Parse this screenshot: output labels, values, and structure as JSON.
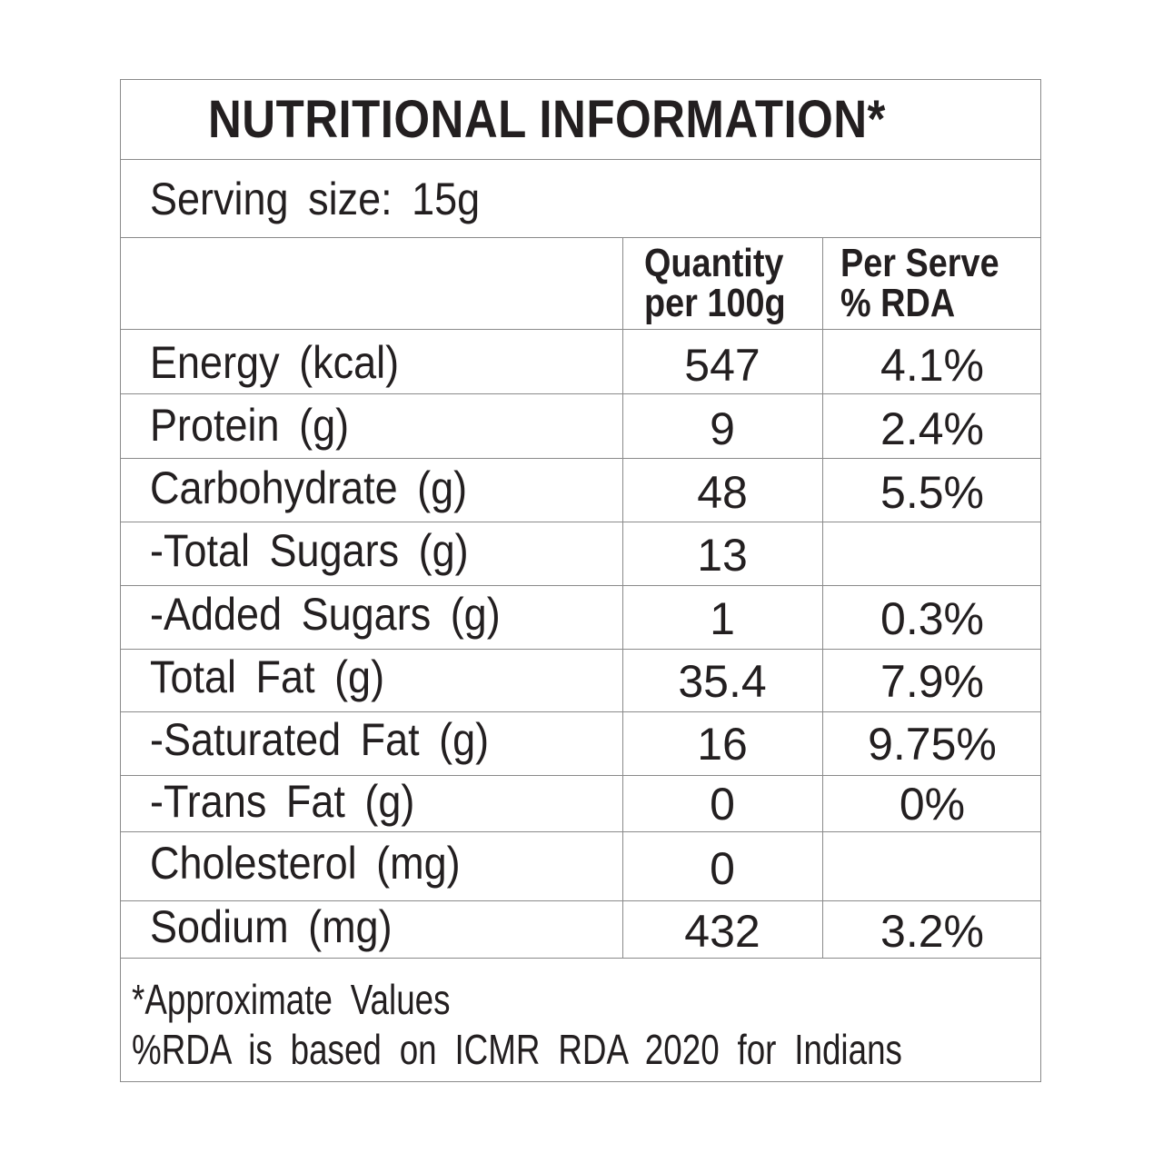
{
  "title": "NUTRITIONAL INFORMATION*",
  "serving_size": "Serving size: 15g",
  "headers": {
    "quantity_line1": "Quantity",
    "quantity_line2": "per 100g",
    "rda_line1": "Per Serve",
    "rda_line2": "% RDA"
  },
  "rows": [
    {
      "name": "Energy (kcal)",
      "qty": "547",
      "rda": "4.1%"
    },
    {
      "name": "Protein (g)",
      "qty": "9",
      "rda": "2.4%"
    },
    {
      "name": "Carbohydrate (g)",
      "qty": "48",
      "rda": "5.5%"
    },
    {
      "name": "-Total Sugars (g)",
      "qty": "13",
      "rda": ""
    },
    {
      "name": "-Added Sugars (g)",
      "qty": "1",
      "rda": "0.3%"
    },
    {
      "name": "Total Fat (g)",
      "qty": "35.4",
      "rda": "7.9%"
    },
    {
      "name": "-Saturated Fat (g)",
      "qty": "16",
      "rda": "9.75%"
    },
    {
      "name": "-Trans Fat (g)",
      "qty": "0",
      "rda": "0%"
    },
    {
      "name": "Cholesterol (mg)",
      "qty": "0",
      "rda": ""
    },
    {
      "name": "Sodium (mg)",
      "qty": "432",
      "rda": "3.2%"
    }
  ],
  "footnotes": {
    "line1": "*Approximate Values",
    "line2": "%RDA is based on ICMR RDA 2020 for Indians"
  }
}
